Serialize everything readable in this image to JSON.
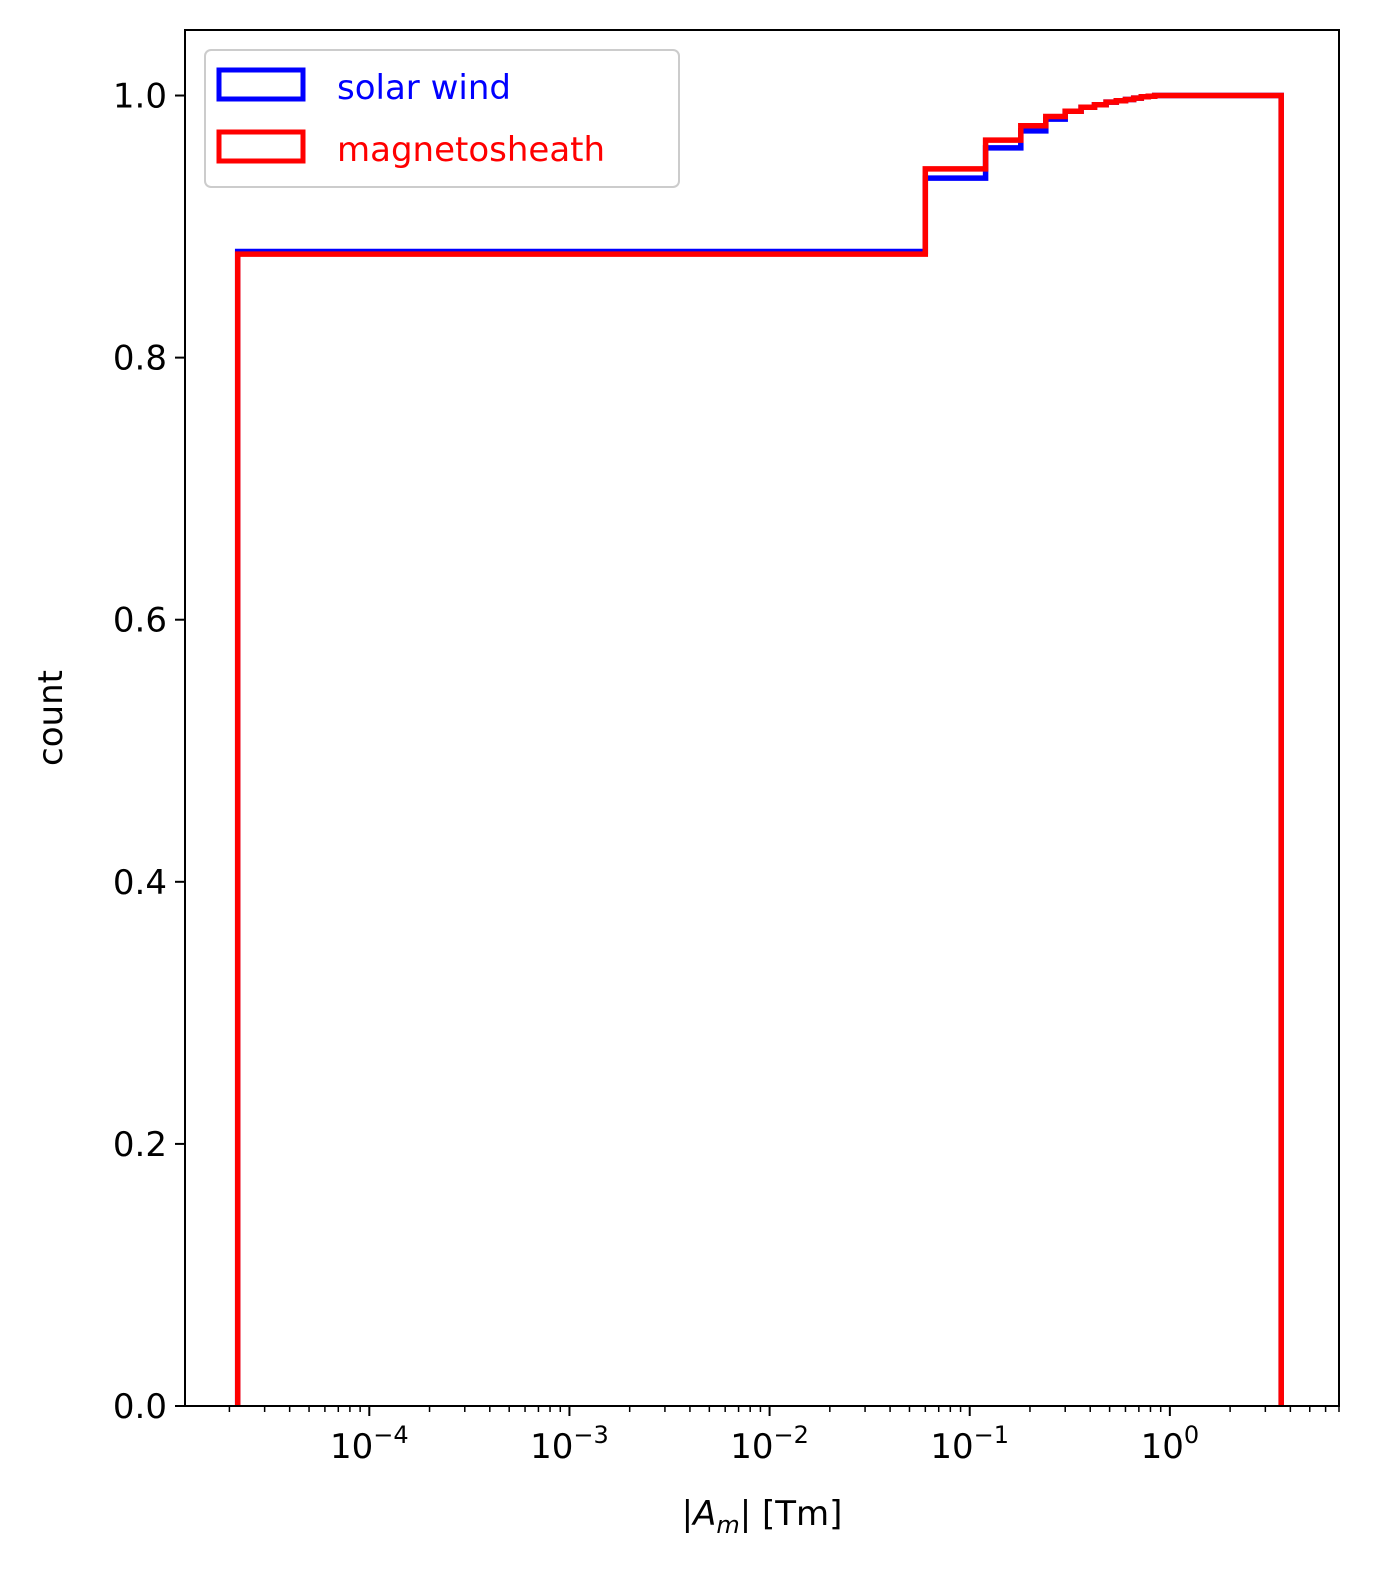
{
  "chart_data": {
    "type": "step",
    "xscale": "log",
    "xlim": [
      1.2e-05,
      7
    ],
    "ylim": [
      0,
      1.05
    ],
    "xlabel": {
      "pre": "|",
      "var": "A",
      "sub": "m",
      "post": "| [Tm]"
    },
    "ylabel": "count",
    "grid": false,
    "legend": {
      "position": "top-left"
    },
    "x_ticks": [
      {
        "value": 0.0001,
        "base": "10",
        "exp": "−4"
      },
      {
        "value": 0.001,
        "base": "10",
        "exp": "−3"
      },
      {
        "value": 0.01,
        "base": "10",
        "exp": "−2"
      },
      {
        "value": 0.1,
        "base": "10",
        "exp": "−1"
      },
      {
        "value": 1,
        "base": "10",
        "exp": "0"
      }
    ],
    "y_ticks": [
      {
        "value": 0.0,
        "label": "0.0"
      },
      {
        "value": 0.2,
        "label": "0.2"
      },
      {
        "value": 0.4,
        "label": "0.4"
      },
      {
        "value": 0.6,
        "label": "0.6"
      },
      {
        "value": 0.8,
        "label": "0.8"
      },
      {
        "value": 1.0,
        "label": "1.0"
      }
    ],
    "series": [
      {
        "name": "solar wind",
        "color": "#0000ff",
        "edges": [
          2.2e-05,
          0.06,
          0.12,
          0.18,
          0.24,
          0.3,
          0.36,
          0.42,
          0.48,
          0.54,
          0.6,
          0.66,
          0.72,
          0.78,
          0.84,
          0.9,
          0.96,
          1.02,
          3.6
        ],
        "values": [
          0.881,
          0.937,
          0.96,
          0.973,
          0.982,
          0.988,
          0.991,
          0.993,
          0.995,
          0.996,
          0.997,
          0.998,
          0.999,
          0.9995,
          1.0,
          1.0,
          1.0,
          1.0
        ]
      },
      {
        "name": "magnetosheath",
        "color": "#ff0000",
        "edges": [
          2.2e-05,
          0.06,
          0.12,
          0.18,
          0.24,
          0.3,
          0.36,
          0.42,
          0.48,
          0.54,
          0.6,
          0.66,
          0.72,
          0.78,
          0.84,
          0.9,
          0.96,
          1.02,
          3.6
        ],
        "values": [
          0.879,
          0.944,
          0.966,
          0.977,
          0.984,
          0.988,
          0.991,
          0.993,
          0.995,
          0.996,
          0.997,
          0.998,
          0.999,
          0.9995,
          1.0,
          1.0,
          1.0,
          1.0
        ]
      }
    ]
  }
}
